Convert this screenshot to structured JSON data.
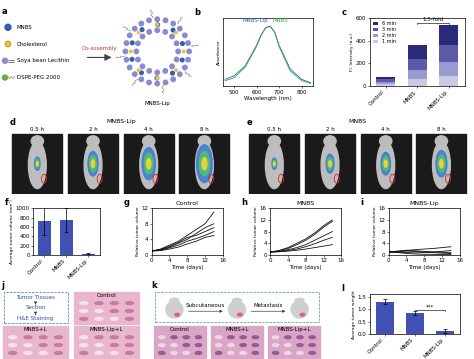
{
  "chart_data": [
    {
      "panel": "b",
      "type": "line",
      "xlabel": "Wavelength (nm)",
      "ylabel": "Absorbance",
      "x": [
        460,
        500,
        550,
        600,
        620,
        640,
        660,
        680,
        700,
        750,
        800,
        840
      ],
      "series": [
        {
          "name": "MNBS-Lip",
          "color": "#2f5fb3",
          "values": [
            0.1,
            0.15,
            0.3,
            0.6,
            0.75,
            0.85,
            0.88,
            0.8,
            0.6,
            0.25,
            0.1,
            0.05
          ]
        },
        {
          "name": "MNBS",
          "color": "#3aa655",
          "values": [
            0.08,
            0.12,
            0.28,
            0.58,
            0.74,
            0.86,
            0.88,
            0.79,
            0.58,
            0.22,
            0.08,
            0.04
          ]
        }
      ],
      "xlim": [
        450,
        850
      ],
      "xticks": [
        500,
        600,
        700,
        800
      ],
      "ylim": [
        0,
        1
      ],
      "tick_labels": "x"
    },
    {
      "panel": "c",
      "type": "bar",
      "stacked": true,
      "legend": "upper left",
      "ylabel": "Fl. Intensity (a.u.)",
      "categories": [
        "Control",
        "MNBS",
        "MNBS-Lip"
      ],
      "series": [
        {
          "name": "1 min",
          "color": "#c9c9e6",
          "values": [
            20,
            60,
            90
          ]
        },
        {
          "name": "2 min",
          "color": "#9a9acc",
          "values": [
            20,
            80,
            120
          ]
        },
        {
          "name": "3 min",
          "color": "#5a5aa8",
          "values": [
            20,
            100,
            150
          ]
        },
        {
          "name": "6 min",
          "color": "#2a2a7a",
          "values": [
            20,
            120,
            180
          ]
        }
      ],
      "ylim": [
        0,
        600
      ],
      "yticks": [
        0,
        200,
        400,
        600
      ],
      "annotations": [
        "1.5-fold"
      ]
    },
    {
      "panel": "f",
      "type": "bar",
      "ylabel": "Average tumor volume (mm³)",
      "categories": [
        "Control",
        "MNBS",
        "MNBS-Lip"
      ],
      "values": [
        720,
        750,
        20
      ],
      "errors": [
        300,
        250,
        10
      ],
      "color": "#3f51b5",
      "ylim": [
        0,
        1000
      ],
      "yticks": [
        0,
        200,
        400,
        600,
        800,
        1000
      ]
    },
    {
      "panel": "g",
      "type": "line",
      "title": "Control",
      "xlabel": "Time (days)",
      "ylabel": "Relative tumor volume",
      "x": [
        0,
        2,
        4,
        6,
        8,
        10,
        12,
        14
      ],
      "color": "#111111",
      "series": [
        {
          "values": [
            1,
            1.5,
            2.5,
            3.5,
            5,
            6.5,
            8,
            11
          ]
        },
        {
          "values": [
            1,
            1.3,
            2,
            3,
            4,
            5.5,
            7,
            8
          ]
        },
        {
          "values": [
            1,
            1.4,
            2.2,
            3.2,
            4.5,
            5,
            6,
            7
          ]
        },
        {
          "values": [
            1,
            1.2,
            1.8,
            2.5,
            3.5,
            4.2,
            5,
            6
          ]
        },
        {
          "values": [
            1,
            1.1,
            1.5,
            2,
            2.8,
            3.5,
            4.5,
            5
          ]
        }
      ],
      "xlim": [
        0,
        16
      ],
      "xticks": [
        0,
        4,
        8,
        12,
        16
      ],
      "ylim": [
        0,
        12
      ],
      "yticks": [
        0,
        4,
        8,
        12
      ]
    },
    {
      "panel": "h",
      "type": "line",
      "title": "MNBS",
      "xlabel": "Time (days)",
      "ylabel": "Relative tumor volume",
      "x": [
        0,
        2,
        4,
        6,
        8,
        10,
        12,
        14
      ],
      "color": "#111111",
      "series": [
        {
          "values": [
            1,
            1.5,
            2.5,
            4,
            5.5,
            7.5,
            10,
            12
          ]
        },
        {
          "values": [
            1,
            1.4,
            2.2,
            3.5,
            5,
            7,
            9.5,
            11.5
          ]
        },
        {
          "values": [
            1,
            1.2,
            1.8,
            2.5,
            3.5,
            5,
            6.5,
            8
          ]
        },
        {
          "values": [
            1,
            1.1,
            1.5,
            2,
            2.8,
            3.8,
            5,
            6
          ]
        },
        {
          "values": [
            1,
            1.1,
            1.3,
            1.6,
            2,
            2.5,
            3,
            3.5
          ]
        }
      ],
      "xlim": [
        0,
        16
      ],
      "xticks": [
        0,
        4,
        8,
        12,
        16
      ],
      "ylim": [
        0,
        16
      ],
      "yticks": [
        0,
        4,
        8,
        12,
        16
      ]
    },
    {
      "panel": "i",
      "type": "line",
      "title": "MNBS-Lip",
      "xlabel": "Time (days)",
      "ylabel": "Relative tumor volume",
      "x": [
        0,
        2,
        4,
        6,
        8,
        10,
        12,
        14
      ],
      "color": "#111111",
      "series": [
        {
          "values": [
            1,
            0.9,
            0.8,
            0.7,
            0.8,
            1.0,
            1.2,
            1.5
          ]
        },
        {
          "values": [
            1,
            1.2,
            1.5,
            1.8,
            2,
            2.2,
            2.5,
            2.8
          ]
        },
        {
          "values": [
            1,
            0.8,
            0.5,
            0.3,
            0.2,
            0.2,
            0.1,
            0.1
          ]
        },
        {
          "values": [
            1,
            1.1,
            1.3,
            1.2,
            1.0,
            0.8,
            0.6,
            0.5
          ]
        },
        {
          "values": [
            1,
            1.3,
            1.6,
            1.4,
            1.2,
            1.0,
            0.9,
            0.8
          ]
        }
      ],
      "xlim": [
        0,
        16
      ],
      "xticks": [
        0,
        4,
        8,
        12,
        16
      ],
      "ylim": [
        0,
        16
      ],
      "yticks": [
        0,
        4,
        8,
        12,
        16
      ]
    },
    {
      "panel": "l",
      "type": "bar",
      "ylabel": "Average tumor weight",
      "categories": [
        "Control",
        "MNBS",
        "MNBS-Lip"
      ],
      "values": [
        1.3,
        0.85,
        0.12
      ],
      "errors": [
        0.1,
        0.07,
        0.08
      ],
      "color": "#3f51b5",
      "ylim": [
        0,
        1.6
      ],
      "yticks": [
        {
          "value": 0,
          "label": "0.0"
        },
        {
          "value": 0.5,
          "label": "0.5"
        },
        {
          "value": 1.0,
          "label": "1.0"
        },
        {
          "value": 1.5,
          "label": "1.5"
        }
      ],
      "annotations": [
        "***"
      ]
    }
  ],
  "diagrams": [
    {
      "panel": "a",
      "legend_items": [
        "MNBS",
        "Cholesterol",
        "Soya bean Lecithin",
        "DSPE-PEG 2000"
      ],
      "arrow_label": "Co-assembly",
      "product": "MNBS-Lip"
    },
    {
      "panel": "d",
      "title": "MNBS-Lip",
      "time_points": [
        "0.5 h",
        "2 h",
        "4 h",
        "8 h"
      ]
    },
    {
      "panel": "e",
      "title": "MNBS",
      "time_points": [
        "0.5 h",
        "2 h",
        "4 h",
        "8 h"
      ]
    },
    {
      "panel": "j",
      "steps": [
        "Tumor Tissues",
        "Section",
        "H&E Staining"
      ],
      "images": [
        "Control",
        "MNBS+L",
        "MNBS-Lip+L"
      ]
    },
    {
      "panel": "k",
      "stages": [
        "Subcutaneous",
        "Metastasis"
      ],
      "images": [
        "Control",
        "MNBS+L",
        "MNBS-Lip+L"
      ]
    }
  ]
}
